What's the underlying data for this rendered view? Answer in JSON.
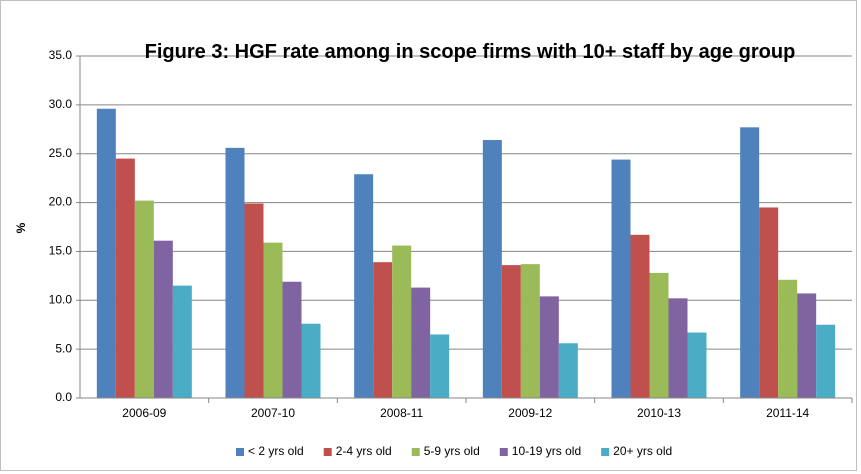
{
  "chart_data": {
    "type": "bar",
    "title": "Figure 3: HGF rate among in scope firms with 10+ staff by age group",
    "ylabel": "%",
    "categories": [
      "2006-09",
      "2007-10",
      "2008-11",
      "2009-12",
      "2010-13",
      "2011-14"
    ],
    "series": [
      {
        "name": "< 2 yrs old",
        "color": "#4f81bd",
        "values": [
          29.6,
          25.6,
          22.9,
          26.4,
          24.4,
          27.7
        ]
      },
      {
        "name": "2-4 yrs old",
        "color": "#c0504d",
        "values": [
          24.5,
          19.9,
          13.9,
          13.6,
          16.7,
          19.5
        ]
      },
      {
        "name": "5-9 yrs old",
        "color": "#9bbb59",
        "values": [
          20.2,
          15.9,
          15.6,
          13.7,
          12.8,
          12.1
        ]
      },
      {
        "name": "10-19 yrs old",
        "color": "#8064a2",
        "values": [
          16.1,
          11.9,
          11.3,
          10.4,
          10.2,
          10.7
        ]
      },
      {
        "name": "20+ yrs old",
        "color": "#4bacc6",
        "values": [
          11.5,
          7.6,
          6.5,
          5.6,
          6.7,
          7.5
        ]
      }
    ],
    "ylim": [
      0,
      35
    ],
    "yticks": [
      {
        "value": 0,
        "label": "0.0"
      },
      {
        "value": 5,
        "label": "5.0"
      },
      {
        "value": 10,
        "label": "10.0"
      },
      {
        "value": 15,
        "label": "15.0"
      },
      {
        "value": 20,
        "label": "20.0"
      },
      {
        "value": 25,
        "label": "25.0"
      },
      {
        "value": 30,
        "label": "30.0"
      },
      {
        "value": 35,
        "label": "35.0"
      }
    ],
    "grid": true,
    "legend": "bottom"
  }
}
